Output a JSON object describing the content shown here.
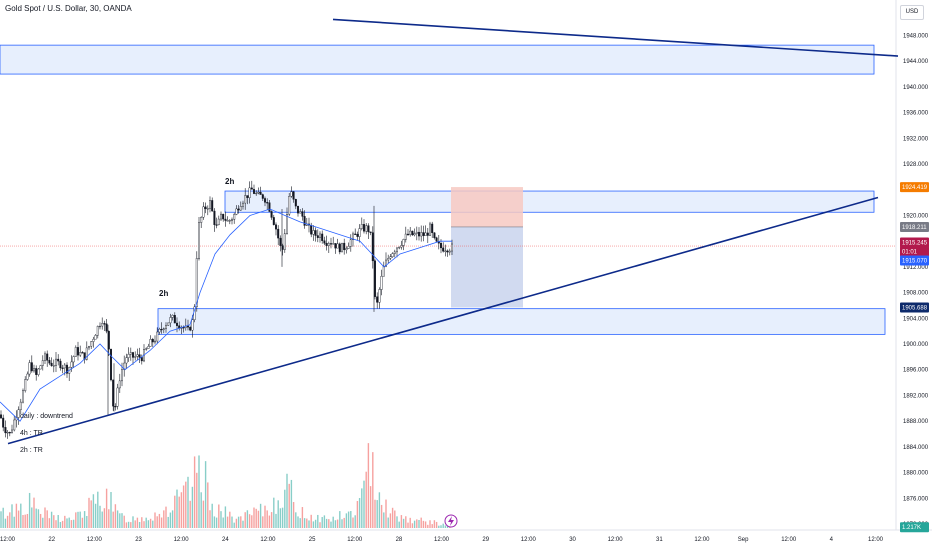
{
  "header": {
    "title": "Gold Spot / U.S. Dollar, 30, OANDA",
    "currency": "USD"
  },
  "price_axis_ticks": [
    "1948.000",
    "1944.000",
    "1940.000",
    "1936.000",
    "1932.000",
    "1928.000",
    "1924.000",
    "1920.000",
    "1916.000",
    "1912.000",
    "1908.000",
    "1904.000",
    "1900.000",
    "1896.000",
    "1892.000",
    "1888.000",
    "1884.000",
    "1880.000",
    "1876.000",
    "1872.000"
  ],
  "time_axis_ticks": [
    "12:00",
    "22",
    "12:00",
    "23",
    "12:00",
    "24",
    "12:00",
    "25",
    "12:00",
    "28",
    "12:00",
    "29",
    "12:00",
    "30",
    "12:00",
    "31",
    "12:00",
    "Sep",
    "12:00",
    "4",
    "12:00"
  ],
  "badges": [
    {
      "text": "1924.419",
      "price": 1924.419,
      "color": "#f57c00"
    },
    {
      "text": "1918.211",
      "price": 1918.211,
      "color": "#787b86"
    },
    {
      "text": "1915.245",
      "price": 1915.8,
      "color": "#b2194c"
    },
    {
      "text": "01:01",
      "price": 1914.4,
      "color": "#b2194c"
    },
    {
      "text": "1915.070",
      "price": 1913.0,
      "color": "#2962ff"
    },
    {
      "text": "1905.688",
      "price": 1905.688,
      "color": "#0d2a6b"
    },
    {
      "text": "1.217K",
      "price": 1871.5,
      "color": "#26a69a"
    }
  ],
  "annotations": {
    "zone_label_upper": "2h",
    "zone_label_lower": "2h",
    "note_daily": "daily : downtrend",
    "note_4h": "4h : TR",
    "note_2h": "2h : TR"
  },
  "colors": {
    "up": "#26a69a",
    "down": "#ef5350",
    "trendline": "#0d2a8a",
    "zone_fill": "#e3ecfd",
    "zone_border": "#2962ff",
    "ma": "#2962ff",
    "candle": "#131722"
  },
  "chart_data": {
    "type": "candlestick",
    "symbol": "Gold Spot / U.S. Dollar",
    "timeframe": "30",
    "ylim": [
      1870,
      1951
    ],
    "x_ticks": [
      "12:00",
      "22",
      "12:00",
      "23",
      "12:00",
      "24",
      "12:00",
      "25",
      "12:00",
      "28",
      "12:00",
      "29",
      "12:00",
      "30",
      "12:00",
      "31",
      "12:00",
      "Sep",
      "12:00",
      "4",
      "12:00"
    ],
    "close_path": [
      [
        0,
        1889
      ],
      [
        4,
        1887
      ],
      [
        10,
        1886
      ],
      [
        18,
        1890
      ],
      [
        24,
        1893
      ],
      [
        30,
        1897
      ],
      [
        36,
        1895
      ],
      [
        44,
        1898
      ],
      [
        50,
        1897
      ],
      [
        60,
        1897
      ],
      [
        68,
        1896
      ],
      [
        76,
        1899
      ],
      [
        84,
        1898
      ],
      [
        90,
        1900
      ],
      [
        96,
        1902
      ],
      [
        102,
        1904
      ],
      [
        108,
        1901
      ],
      [
        112,
        1893
      ],
      [
        114,
        1889
      ],
      [
        120,
        1895
      ],
      [
        126,
        1898
      ],
      [
        134,
        1898
      ],
      [
        142,
        1898
      ],
      [
        150,
        1900
      ],
      [
        156,
        1901
      ],
      [
        164,
        1903
      ],
      [
        172,
        1904
      ],
      [
        180,
        1903
      ],
      [
        188,
        1902
      ],
      [
        194,
        1904
      ],
      [
        198,
        1918
      ],
      [
        204,
        1921
      ],
      [
        210,
        1922
      ],
      [
        216,
        1918
      ],
      [
        222,
        1920
      ],
      [
        228,
        1919
      ],
      [
        234,
        1920
      ],
      [
        240,
        1922
      ],
      [
        246,
        1923
      ],
      [
        252,
        1924
      ],
      [
        258,
        1923
      ],
      [
        264,
        1923
      ],
      [
        270,
        1921
      ],
      [
        276,
        1918
      ],
      [
        282,
        1914
      ],
      [
        286,
        1919
      ],
      [
        290,
        1924
      ],
      [
        296,
        1921
      ],
      [
        302,
        1920
      ],
      [
        308,
        1918
      ],
      [
        314,
        1917
      ],
      [
        320,
        1917
      ],
      [
        326,
        1916
      ],
      [
        332,
        1916
      ],
      [
        338,
        1915
      ],
      [
        344,
        1915
      ],
      [
        350,
        1916
      ],
      [
        356,
        1917
      ],
      [
        362,
        1918
      ],
      [
        368,
        1918
      ],
      [
        372,
        1916
      ],
      [
        374,
        1909
      ],
      [
        376,
        1905
      ],
      [
        380,
        1909
      ],
      [
        384,
        1912
      ],
      [
        390,
        1914
      ],
      [
        396,
        1915
      ],
      [
        402,
        1916
      ],
      [
        408,
        1917
      ],
      [
        414,
        1917
      ],
      [
        420,
        1917
      ],
      [
        426,
        1917
      ],
      [
        430,
        1918
      ],
      [
        434,
        1916
      ],
      [
        440,
        1915
      ],
      [
        446,
        1915
      ],
      [
        452,
        1915
      ]
    ],
    "volume_profile": [
      [
        0,
        18
      ],
      [
        10,
        24
      ],
      [
        20,
        30
      ],
      [
        30,
        34
      ],
      [
        40,
        22
      ],
      [
        50,
        16
      ],
      [
        60,
        14
      ],
      [
        70,
        12
      ],
      [
        80,
        18
      ],
      [
        90,
        30
      ],
      [
        100,
        40
      ],
      [
        108,
        48
      ],
      [
        112,
        28
      ],
      [
        120,
        16
      ],
      [
        130,
        12
      ],
      [
        140,
        14
      ],
      [
        150,
        16
      ],
      [
        160,
        22
      ],
      [
        170,
        26
      ],
      [
        180,
        40
      ],
      [
        190,
        50
      ],
      [
        196,
        70
      ],
      [
        200,
        84
      ],
      [
        206,
        60
      ],
      [
        212,
        32
      ],
      [
        220,
        24
      ],
      [
        230,
        16
      ],
      [
        240,
        12
      ],
      [
        250,
        18
      ],
      [
        260,
        22
      ],
      [
        270,
        26
      ],
      [
        280,
        46
      ],
      [
        288,
        54
      ],
      [
        294,
        36
      ],
      [
        300,
        22
      ],
      [
        310,
        16
      ],
      [
        320,
        14
      ],
      [
        330,
        12
      ],
      [
        340,
        16
      ],
      [
        350,
        18
      ],
      [
        360,
        34
      ],
      [
        366,
        60
      ],
      [
        372,
        108
      ],
      [
        376,
        70
      ],
      [
        382,
        40
      ],
      [
        390,
        22
      ],
      [
        400,
        16
      ],
      [
        410,
        12
      ],
      [
        420,
        10
      ],
      [
        430,
        8
      ],
      [
        440,
        6
      ],
      [
        448,
        4
      ]
    ],
    "ma_path": [
      [
        0,
        1891
      ],
      [
        20,
        1888
      ],
      [
        40,
        1893
      ],
      [
        60,
        1895
      ],
      [
        80,
        1897
      ],
      [
        100,
        1900
      ],
      [
        112,
        1898
      ],
      [
        125,
        1896
      ],
      [
        150,
        1899
      ],
      [
        170,
        1902
      ],
      [
        190,
        1903
      ],
      [
        200,
        1908
      ],
      [
        215,
        1914
      ],
      [
        230,
        1917
      ],
      [
        250,
        1920
      ],
      [
        270,
        1921
      ],
      [
        285,
        1920
      ],
      [
        300,
        1919
      ],
      [
        320,
        1918
      ],
      [
        340,
        1917
      ],
      [
        360,
        1916
      ],
      [
        372,
        1914
      ],
      [
        384,
        1912
      ],
      [
        400,
        1914
      ],
      [
        420,
        1915
      ],
      [
        440,
        1916
      ],
      [
        452,
        1916
      ]
    ],
    "zones": [
      {
        "name": "top-zone",
        "x1": 0,
        "x2": 874,
        "y1": 1942,
        "y2": 1946.5
      },
      {
        "name": "upper-zone",
        "x1": 225,
        "x2": 874,
        "y1": 1920.5,
        "y2": 1923.8
      },
      {
        "name": "lower-zone",
        "x1": 158,
        "x2": 885,
        "y1": 1901.5,
        "y2": 1905.5
      }
    ],
    "trendlines": [
      {
        "name": "descending",
        "p1": [
          333,
          1950.5
        ],
        "p2": [
          898,
          1944.8
        ]
      },
      {
        "name": "ascending",
        "p1": [
          8,
          1884.5
        ],
        "p2": [
          878,
          1922.8
        ]
      }
    ],
    "position": {
      "x1": 451,
      "x2": 523,
      "entry": 1918.211,
      "stop": 1924.419,
      "target": 1905.688,
      "current": 1915.245
    },
    "current_price_line": 1915.245
  }
}
